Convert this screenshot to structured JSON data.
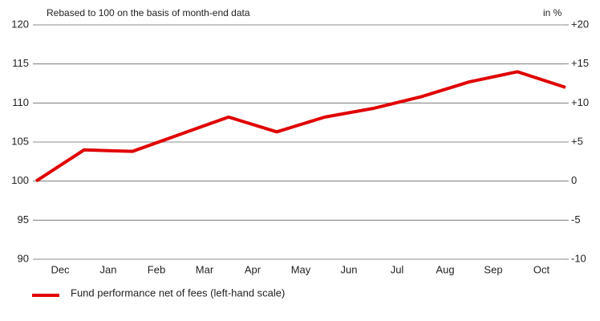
{
  "chart_data": {
    "type": "line",
    "subtitle": "Rebased to 100 on the basis of month-end data",
    "y2_unit_label": "in %",
    "categories": [
      "Dec",
      "Jan",
      "Feb",
      "Mar",
      "Apr",
      "May",
      "Jun",
      "Jul",
      "Aug",
      "Sep",
      "Oct",
      null
    ],
    "series": [
      {
        "name": "Fund performance net of fees (left-hand scale)",
        "color": "#e00000",
        "values": [
          100,
          104,
          103.8,
          106,
          108.2,
          106.3,
          108.2,
          109.3,
          110.8,
          112.7,
          114,
          112
        ]
      }
    ],
    "ylim": [
      90,
      120
    ],
    "yticks": [
      90,
      95,
      100,
      105,
      110,
      115,
      120
    ],
    "y2lim": [
      -10,
      20
    ],
    "y2ticks": [
      -10,
      -5,
      0,
      {
        "value": 5,
        "label": "+5"
      },
      {
        "value": 10,
        "label": "+10"
      },
      {
        "value": 15,
        "label": "+15"
      },
      {
        "value": 20,
        "label": "+20"
      }
    ],
    "grid": true
  }
}
